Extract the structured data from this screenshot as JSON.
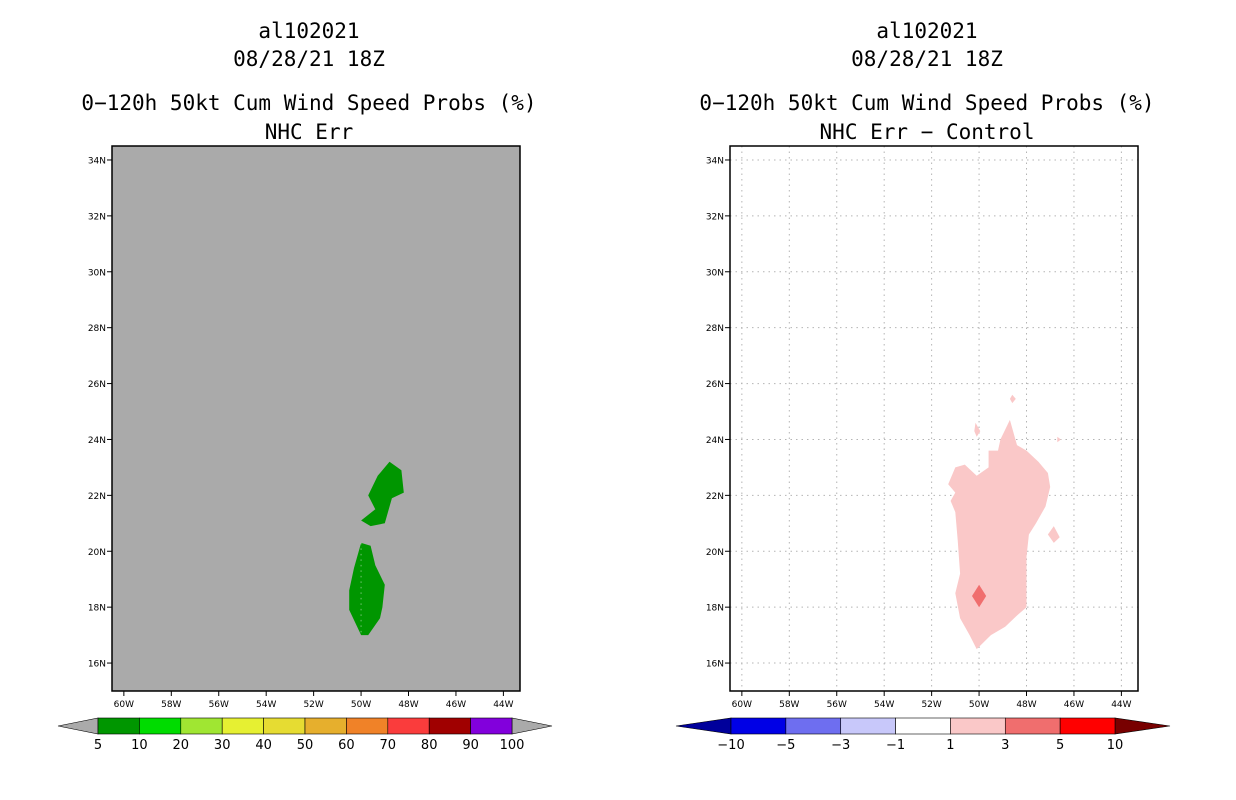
{
  "chart_data": [
    {
      "type": "heatmap",
      "storm_id": "al102021",
      "datetime": "08/28/21 18Z",
      "title": "0−120h 50kt Cum Wind Speed Probs (%)",
      "subtitle": "NHC Err",
      "xlim": [
        -60.5,
        -43.3
      ],
      "ylim": [
        15.0,
        34.5
      ],
      "x_ticks": [
        "60W",
        "58W",
        "56W",
        "54W",
        "52W",
        "50W",
        "48W",
        "46W",
        "44W"
      ],
      "y_ticks": [
        "16N",
        "18N",
        "20N",
        "22N",
        "24N",
        "26N",
        "28N",
        "30N",
        "32N",
        "34N"
      ],
      "grid": false,
      "colorbar": {
        "labels": [
          "5",
          "10",
          "20",
          "30",
          "40",
          "50",
          "60",
          "70",
          "80",
          "90",
          "100"
        ],
        "colors": [
          "#009600",
          "#00dc00",
          "#a0e632",
          "#e6f032",
          "#e6dc32",
          "#e6af2d",
          "#f08228",
          "#fa3c3c",
          "#a00000",
          "#8200dc"
        ],
        "end_colors": [
          "#aaaaaa",
          "#aaaaaa"
        ]
      },
      "regions": [
        {
          "level": "5-10",
          "color": "#009600",
          "lonlat": [
            [
              -48.8,
              23.2
            ],
            [
              -48.3,
              22.9
            ],
            [
              -48.2,
              22.1
            ],
            [
              -48.7,
              21.9
            ],
            [
              -49.0,
              21.0
            ],
            [
              -49.6,
              20.9
            ],
            [
              -50.0,
              21.1
            ],
            [
              -49.4,
              21.5
            ],
            [
              -49.7,
              22.0
            ],
            [
              -49.3,
              22.7
            ]
          ]
        },
        {
          "level": "5-10",
          "color": "#009600",
          "lonlat": [
            [
              -50.0,
              20.3
            ],
            [
              -49.6,
              20.2
            ],
            [
              -49.4,
              19.5
            ],
            [
              -49.0,
              18.8
            ],
            [
              -49.1,
              18.0
            ],
            [
              -49.2,
              17.6
            ],
            [
              -49.7,
              17.0
            ],
            [
              -50.0,
              17.0
            ],
            [
              -50.5,
              17.9
            ],
            [
              -50.5,
              18.6
            ],
            [
              -50.3,
              19.4
            ]
          ]
        }
      ]
    },
    {
      "type": "heatmap",
      "storm_id": "al102021",
      "datetime": "08/28/21 18Z",
      "title": "0−120h 50kt Cum Wind Speed Probs (%)",
      "subtitle": "NHC Err − Control",
      "xlim": [
        -60.5,
        -43.3
      ],
      "ylim": [
        15.0,
        34.5
      ],
      "x_ticks": [
        "60W",
        "58W",
        "56W",
        "54W",
        "52W",
        "50W",
        "48W",
        "46W",
        "44W"
      ],
      "y_ticks": [
        "16N",
        "18N",
        "20N",
        "22N",
        "24N",
        "26N",
        "28N",
        "30N",
        "32N",
        "34N"
      ],
      "grid": true,
      "colorbar": {
        "labels": [
          "−10",
          "−5",
          "−3",
          "−1",
          "1",
          "3",
          "5",
          "10"
        ],
        "colors": [
          "#0000e6",
          "#6e6ef0",
          "#c8c8fa",
          "#ffffff",
          "#fac8c8",
          "#f06e6e",
          "#ff0000"
        ],
        "end_colors": [
          "#00009b",
          "#780000"
        ]
      },
      "regions": [
        {
          "level": "1-3",
          "color": "#fac8c8",
          "lonlat": [
            [
              -49.1,
              24.0
            ],
            [
              -48.7,
              24.7
            ],
            [
              -48.4,
              23.8
            ],
            [
              -48.0,
              23.6
            ],
            [
              -47.5,
              23.2
            ],
            [
              -47.1,
              22.8
            ],
            [
              -47.0,
              22.3
            ],
            [
              -47.2,
              21.6
            ],
            [
              -47.6,
              21.0
            ],
            [
              -47.9,
              20.6
            ],
            [
              -48.0,
              19.8
            ],
            [
              -48.0,
              18.0
            ],
            [
              -48.4,
              17.7
            ],
            [
              -48.9,
              17.3
            ],
            [
              -49.5,
              17.0
            ],
            [
              -50.1,
              16.5
            ],
            [
              -50.4,
              17.0
            ],
            [
              -50.8,
              17.6
            ],
            [
              -51.0,
              18.5
            ],
            [
              -50.8,
              19.2
            ],
            [
              -50.9,
              20.4
            ],
            [
              -51.0,
              21.4
            ],
            [
              -51.2,
              21.8
            ],
            [
              -51.0,
              22.1
            ],
            [
              -51.3,
              22.4
            ],
            [
              -51.0,
              23.0
            ],
            [
              -50.6,
              23.1
            ],
            [
              -50.1,
              22.7
            ],
            [
              -49.6,
              23.0
            ],
            [
              -49.6,
              23.6
            ],
            [
              -49.2,
              23.6
            ]
          ]
        },
        {
          "level": "1-3",
          "color": "#fac8c8",
          "lonlat": [
            [
              -50.15,
              24.6
            ],
            [
              -49.95,
              24.3
            ],
            [
              -50.1,
              24.1
            ],
            [
              -50.2,
              24.3
            ]
          ]
        },
        {
          "level": "1-3",
          "color": "#fac8c8",
          "lonlat": [
            [
              -48.6,
              25.6
            ],
            [
              -48.45,
              25.45
            ],
            [
              -48.6,
              25.3
            ],
            [
              -48.7,
              25.45
            ]
          ]
        },
        {
          "level": "1-3",
          "color": "#fac8c8",
          "lonlat": [
            [
              -46.85,
              20.9
            ],
            [
              -46.6,
              20.5
            ],
            [
              -46.85,
              20.3
            ],
            [
              -47.1,
              20.6
            ]
          ]
        },
        {
          "level": "1-3",
          "color": "#fac8c8",
          "lonlat": [
            [
              -46.7,
              24.1
            ],
            [
              -46.55,
              24.0
            ],
            [
              -46.7,
              23.9
            ]
          ]
        },
        {
          "level": "3-5",
          "color": "#f06e6e",
          "lonlat": [
            [
              -50.0,
              18.8
            ],
            [
              -49.7,
              18.4
            ],
            [
              -50.0,
              18.0
            ],
            [
              -50.3,
              18.4
            ]
          ]
        }
      ]
    }
  ]
}
